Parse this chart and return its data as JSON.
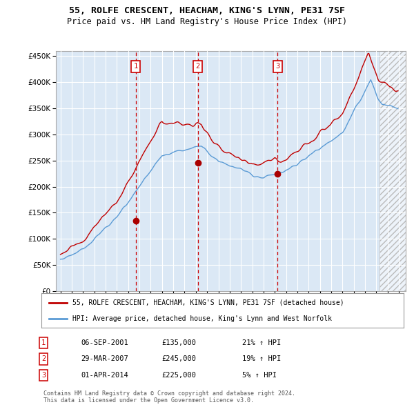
{
  "title": "55, ROLFE CRESCENT, HEACHAM, KING'S LYNN, PE31 7SF",
  "subtitle": "Price paid vs. HM Land Registry's House Price Index (HPI)",
  "hpi_color": "#5b9bd5",
  "hpi_fill_color": "#dbe8f5",
  "price_color": "#c00000",
  "dashed_color": "#cc0000",
  "legend_label_price": "55, ROLFE CRESCENT, HEACHAM, KING'S LYNN, PE31 7SF (detached house)",
  "legend_label_hpi": "HPI: Average price, detached house, King's Lynn and West Norfolk",
  "sale1_date": "06-SEP-2001",
  "sale1_price": "£135,000",
  "sale1_hpi": "21% ↑ HPI",
  "sale2_date": "29-MAR-2007",
  "sale2_price": "£245,000",
  "sale2_hpi": "19% ↑ HPI",
  "sale3_date": "01-APR-2014",
  "sale3_price": "£225,000",
  "sale3_hpi": "5% ↑ HPI",
  "footer1": "Contains HM Land Registry data © Crown copyright and database right 2024.",
  "footer2": "This data is licensed under the Open Government Licence v3.0.",
  "background_color": "#ffffff",
  "chart_bg_color": "#dbe8f5",
  "grid_color": "#ffffff"
}
